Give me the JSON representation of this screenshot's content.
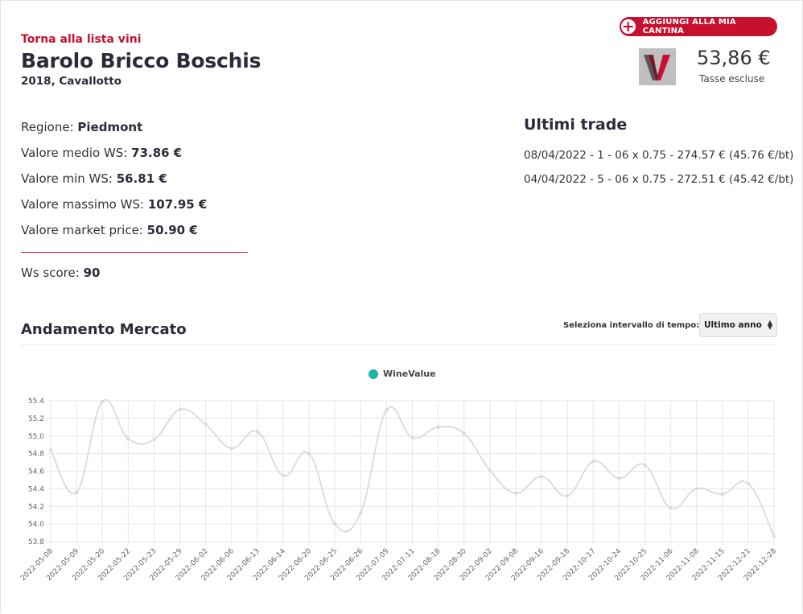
{
  "back_link": "Torna alla lista vini",
  "wine": {
    "name": "Barolo Bricco Boschis",
    "subtitle": "2018, Cavallotto"
  },
  "add_button": {
    "icon": "plus-circle-icon",
    "label": "AGGIUNGI ALLA MIA CANTINA"
  },
  "price": {
    "value": "53,86 €",
    "note": "Tasse escluse"
  },
  "info": {
    "region_label": "Regione:",
    "region_value": "Piedmont",
    "avg_label": "Valore medio WS:",
    "avg_value": "73.86 €",
    "min_label": "Valore min WS:",
    "min_value": "56.81 €",
    "max_label": "Valore massimo WS:",
    "max_value": "107.95 €",
    "market_label": "Valore market price:",
    "market_value": "50.90 €",
    "score_label": "Ws score:",
    "score_value": "90"
  },
  "trades": {
    "title": "Ultimi trade",
    "rows": [
      "08/04/2022 - 1 - 06 x 0.75 - 274.57 € (45.76 €/bt)",
      "04/04/2022 - 5 - 06 x 0.75 - 272.51 € (45.42 €/bt)"
    ]
  },
  "market": {
    "title": "Andamento Mercato",
    "interval_label": "Seleziona intervallo di tempo:",
    "interval_value": "Ultimo anno"
  },
  "colors": {
    "accent": "#c8102e",
    "series": "#1bb3a8",
    "line": "#dddddd"
  },
  "chart_data": {
    "type": "line",
    "legend": "top",
    "grid": true,
    "ylim": [
      53.8,
      55.4
    ],
    "yticks": [
      53.8,
      54.0,
      54.2,
      54.4,
      54.6,
      54.8,
      55.0,
      55.2,
      55.4
    ],
    "categories": [
      "2022-05-08",
      "2022-05-09",
      "2022-05-20",
      "2022-05-22",
      "2022-05-23",
      "2022-05-29",
      "2022-06-02",
      "2022-06-06",
      "2022-06-13",
      "2022-06-14",
      "2022-06-20",
      "2022-06-25",
      "2022-06-26",
      "2022-07-09",
      "2022-07-11",
      "2022-08-18",
      "2022-08-30",
      "2022-09-02",
      "2022-09-08",
      "2022-09-16",
      "2022-09-18",
      "2022-10-17",
      "2022-10-24",
      "2022-10-25",
      "2022-11-06",
      "2022-11-08",
      "2022-11-15",
      "2022-12-21",
      "2022-12-28"
    ],
    "series": [
      {
        "name": "WineValue",
        "values": [
          54.84,
          54.36,
          55.39,
          54.97,
          54.96,
          55.3,
          55.13,
          54.86,
          55.05,
          54.55,
          54.8,
          54.0,
          54.13,
          55.29,
          54.98,
          55.1,
          55.03,
          54.61,
          54.35,
          54.54,
          54.32,
          54.71,
          54.52,
          54.67,
          54.18,
          54.4,
          54.34,
          54.46,
          53.86
        ]
      }
    ]
  }
}
